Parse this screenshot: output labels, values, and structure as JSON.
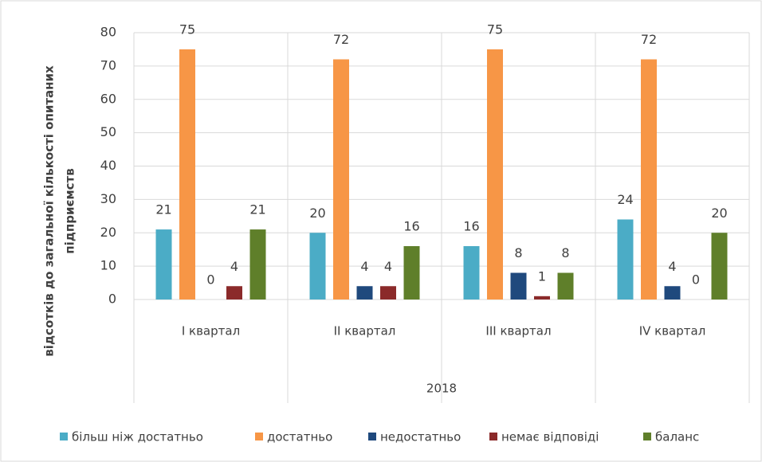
{
  "chart_data": {
    "type": "bar",
    "categories": [
      "І квартал",
      "ІІ квартал",
      "ІІІ квартал",
      "IV квартал"
    ],
    "xlabel": "2018",
    "ylabel": [
      "відсотків до загальної кількості опитаних",
      "підприємств"
    ],
    "series": [
      {
        "name": "більш ніж достатньо",
        "color": "#4bacc6",
        "values": [
          21,
          20,
          16,
          24
        ]
      },
      {
        "name": "достатньо",
        "color": "#f79646",
        "values": [
          75,
          72,
          75,
          72
        ]
      },
      {
        "name": "недостатньо",
        "color": "#1f497d",
        "values": [
          0,
          4,
          8,
          4
        ]
      },
      {
        "name": "немає відповіді",
        "color": "#8b2a2a",
        "values": [
          4,
          4,
          1,
          0
        ]
      },
      {
        "name": "баланс",
        "color": "#5f7f2a",
        "values": [
          21,
          16,
          8,
          20
        ]
      }
    ],
    "ylim": [
      0,
      80
    ],
    "yticks": [
      0,
      10,
      20,
      30,
      40,
      50,
      60,
      70,
      80
    ],
    "grid": true,
    "legend": "bottom"
  }
}
